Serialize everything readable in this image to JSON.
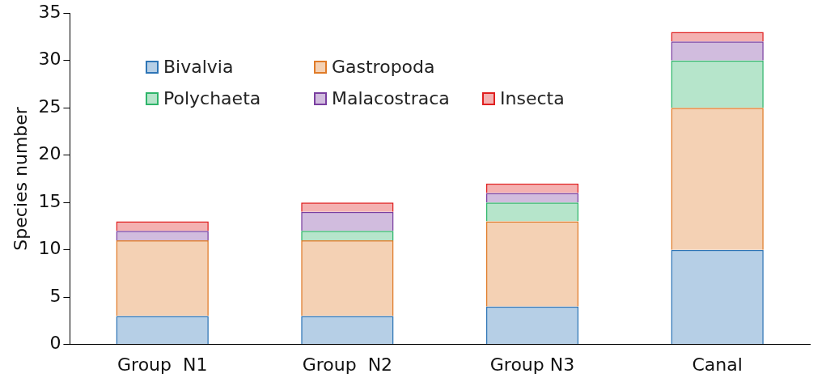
{
  "chart_data": {
    "type": "bar",
    "stacked": true,
    "ylabel": "Species number",
    "categories": [
      "Group  N1",
      "Group  N2",
      "Group N3",
      "Canal"
    ],
    "series": [
      {
        "name": "Bivalvia",
        "color": "#2e75b6",
        "values": [
          3,
          3,
          4,
          10
        ]
      },
      {
        "name": "Gastropoda",
        "color": "#e07b28",
        "values": [
          8,
          8,
          9,
          15
        ]
      },
      {
        "name": "Polychaeta",
        "color": "#2fb56a",
        "values": [
          0,
          1,
          2,
          5
        ]
      },
      {
        "name": "Malacostraca",
        "color": "#7a3fa0",
        "values": [
          1,
          2,
          1,
          2
        ]
      },
      {
        "name": "Insecta",
        "color": "#e02020",
        "values": [
          1,
          1,
          1,
          1
        ]
      }
    ],
    "ylim": [
      0,
      35
    ],
    "yticks": [
      0,
      5,
      10,
      15,
      20,
      25,
      30,
      35
    ],
    "grid": false,
    "legend": "top left"
  }
}
